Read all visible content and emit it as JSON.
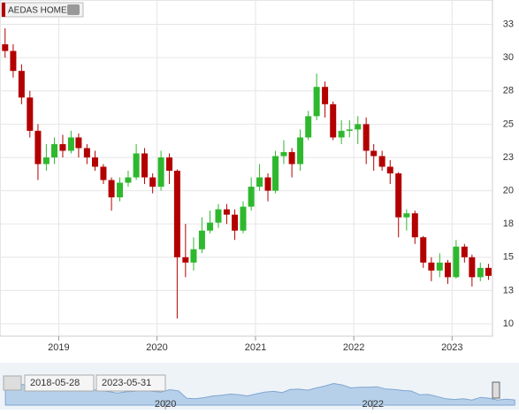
{
  "chart_data": {
    "type": "candlestick",
    "title": "AEDAS HOME",
    "x": [
      "2018-06",
      "2018-07",
      "2018-08",
      "2018-09",
      "2018-10",
      "2018-11",
      "2018-12",
      "2019-01",
      "2019-02",
      "2019-03",
      "2019-04",
      "2019-05",
      "2019-06",
      "2019-07",
      "2019-08",
      "2019-09",
      "2019-10",
      "2019-11",
      "2019-12",
      "2020-01",
      "2020-02",
      "2020-03",
      "2020-04",
      "2020-05",
      "2020-06",
      "2020-07",
      "2020-08",
      "2020-09",
      "2020-10",
      "2020-11",
      "2020-12",
      "2021-01",
      "2021-02",
      "2021-03",
      "2021-04",
      "2021-05",
      "2021-06",
      "2021-07",
      "2021-08",
      "2021-09",
      "2021-10",
      "2021-11",
      "2021-12",
      "2022-01",
      "2022-02",
      "2022-03",
      "2022-04",
      "2022-05",
      "2022-06",
      "2022-07",
      "2022-08",
      "2022-09",
      "2022-10",
      "2022-11",
      "2022-12",
      "2023-01",
      "2023-02",
      "2023-03",
      "2023-04",
      "2023-05"
    ],
    "open": [
      31,
      30.5,
      29,
      27,
      24.5,
      22,
      22.5,
      23.5,
      23,
      24,
      23.2,
      22.5,
      21.8,
      20.8,
      19.5,
      20.6,
      21,
      22.8,
      21,
      20.3,
      22.5,
      21.5,
      15,
      14.6,
      15.6,
      17,
      17.6,
      18.6,
      18.2,
      17,
      18.8,
      20.3,
      21,
      20,
      22.6,
      22.9,
      22,
      24,
      25.6,
      27.8,
      26.5,
      24,
      24.5,
      24.6,
      25,
      23,
      22.6,
      21.8,
      21.3,
      18,
      18.3,
      16.5,
      14.6,
      14,
      14.6,
      13.5,
      15.8,
      15,
      13.5,
      14.2
    ],
    "high": [
      32.2,
      31,
      29.5,
      27.5,
      25,
      23.5,
      24,
      24.2,
      24.5,
      24.3,
      23.5,
      23,
      22,
      21,
      21,
      21.5,
      23.5,
      23.2,
      21.3,
      23,
      22.8,
      21.6,
      17.5,
      16.5,
      18,
      18.5,
      19,
      19,
      18.6,
      19.2,
      21,
      22,
      21.3,
      23,
      23.8,
      23.2,
      24.6,
      26,
      28.8,
      28.2,
      26.7,
      25.3,
      25.3,
      25.6,
      25.5,
      23.5,
      23,
      22.3,
      21.4,
      18.6,
      18.5,
      16.6,
      15,
      15.3,
      14.8,
      16.3,
      16,
      15.2,
      14.6,
      14.5
    ],
    "low": [
      30,
      28.5,
      26.5,
      24,
      20.8,
      21.5,
      22,
      22.5,
      22.8,
      22.5,
      22,
      21.5,
      20.5,
      18.5,
      19.2,
      20.3,
      20.8,
      20.5,
      19.8,
      20,
      20.5,
      10.4,
      13.5,
      14,
      15.3,
      16.8,
      17.2,
      17.5,
      16.3,
      16.8,
      18.5,
      20,
      19.2,
      19.8,
      22,
      21,
      21.5,
      23.8,
      25.3,
      25.5,
      23.8,
      23.5,
      24,
      23.5,
      22,
      21.5,
      21.5,
      20.5,
      16.5,
      17,
      16,
      14.2,
      13.2,
      13.5,
      13,
      13.4,
      14.6,
      12.8,
      13.2,
      13.3
    ],
    "close": [
      30.5,
      29,
      27,
      24.5,
      22,
      22.5,
      23.5,
      23,
      24,
      23.2,
      22.5,
      21.8,
      20.8,
      19.5,
      20.6,
      21,
      22.8,
      21,
      20.3,
      22.5,
      21.5,
      15,
      14.6,
      15.6,
      17,
      17.6,
      18.6,
      18.2,
      17,
      18.8,
      20.3,
      21,
      20,
      22.6,
      22.9,
      22,
      24,
      25.6,
      27.8,
      26.5,
      24,
      24.5,
      24.6,
      25,
      23,
      22.6,
      21.8,
      21.3,
      18,
      18.3,
      16.5,
      14.6,
      14,
      14.6,
      13.5,
      15.8,
      15,
      13.5,
      14.2,
      13.6
    ],
    "up_color": "#2eb82e",
    "down_color": "#b30000",
    "xlim": [
      "2018-05-28",
      "2023-05-31"
    ],
    "xticks": [
      {
        "value": "2019-01-01",
        "label": "2019"
      },
      {
        "value": "2020-01-01",
        "label": "2020"
      },
      {
        "value": "2021-01-01",
        "label": "2021"
      },
      {
        "value": "2022-01-01",
        "label": "2022"
      },
      {
        "value": "2023-01-01",
        "label": "2023"
      }
    ],
    "ylim": [
      9.07,
      34.33
    ],
    "yticks": [
      {
        "value": 10,
        "label": "10"
      },
      {
        "value": 12.5,
        "label": "13"
      },
      {
        "value": 15,
        "label": "15"
      },
      {
        "value": 17.5,
        "label": "18"
      },
      {
        "value": 20,
        "label": "20"
      },
      {
        "value": 22.5,
        "label": "23"
      },
      {
        "value": 25,
        "label": "25"
      },
      {
        "value": 27.5,
        "label": "28"
      },
      {
        "value": 30,
        "label": "30"
      },
      {
        "value": 32.5,
        "label": "33"
      }
    ],
    "grid": true,
    "navigator": {
      "from": "2018-05-28",
      "to": "2023-05-31",
      "xticks": [
        {
          "value": "2020-01-01",
          "label": "2020"
        },
        {
          "value": "2022-01-01",
          "label": "2022"
        }
      ]
    }
  }
}
